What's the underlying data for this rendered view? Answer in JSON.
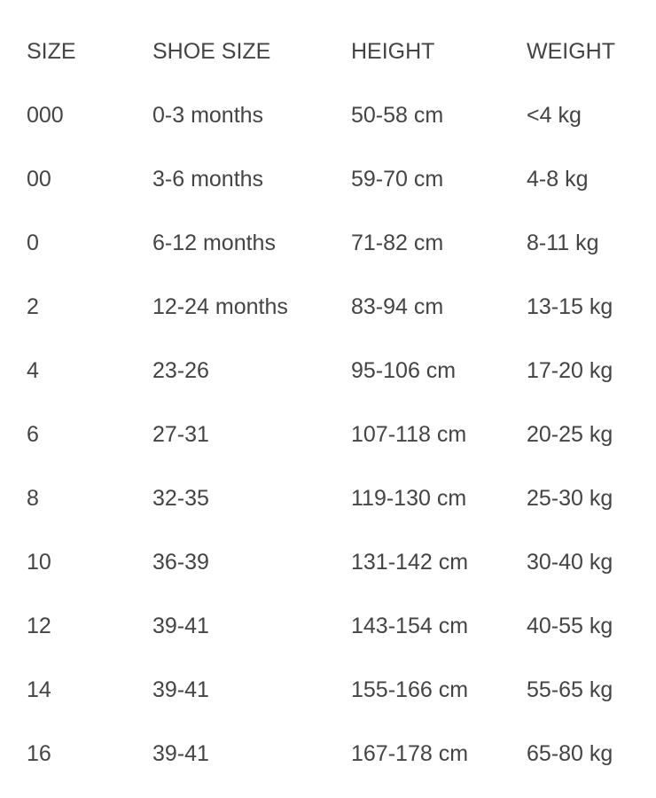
{
  "table": {
    "headers": [
      "SIZE",
      "SHOE SIZE",
      "HEIGHT",
      "WEIGHT"
    ],
    "rows": [
      [
        "000",
        "0-3 months",
        "50-58 cm",
        "<4 kg"
      ],
      [
        "00",
        "3-6 months",
        "59-70 cm",
        "4-8 kg"
      ],
      [
        "0",
        "6-12 months",
        "71-82 cm",
        "8-11 kg"
      ],
      [
        "2",
        "12-24 months",
        "83-94 cm",
        "13-15 kg"
      ],
      [
        "4",
        "23-26",
        "95-106 cm",
        "17-20 kg"
      ],
      [
        "6",
        "27-31",
        "107-118 cm",
        "20-25 kg"
      ],
      [
        "8",
        "32-35",
        "119-130 cm",
        "25-30 kg"
      ],
      [
        "10",
        "36-39",
        "131-142 cm",
        "30-40 kg"
      ],
      [
        "12",
        "39-41",
        "143-154 cm",
        "40-55 kg"
      ],
      [
        "14",
        "39-41",
        "155-166 cm",
        "55-65 kg"
      ],
      [
        "16",
        "39-41",
        "167-178 cm",
        "65-80 kg"
      ]
    ]
  }
}
